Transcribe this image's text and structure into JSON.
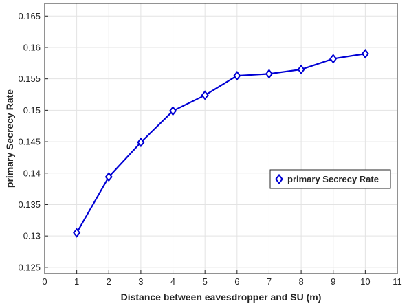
{
  "chart_data": {
    "type": "line",
    "xlabel": "Distance between eavesdropper and SU (m)",
    "ylabel": "primary Secrecy Rate",
    "xlim": [
      0,
      11
    ],
    "ylim": [
      0.124,
      0.167
    ],
    "xticks": [
      0,
      1,
      2,
      3,
      4,
      5,
      6,
      7,
      8,
      9,
      10,
      11
    ],
    "yticks": [
      0.125,
      0.13,
      0.135,
      0.14,
      0.145,
      0.15,
      0.155,
      0.16,
      0.165
    ],
    "ytick_labels": [
      "0.125",
      "0.13",
      "0.135",
      "0.14",
      "0.145",
      "0.15",
      "0.155",
      "0.16",
      "0.165"
    ],
    "grid": true,
    "legend_position": "center-right",
    "series": [
      {
        "name": "primary Secrecy Rate",
        "color": "#0000d4",
        "marker": "diamond",
        "x": [
          1,
          2,
          3,
          4,
          5,
          6,
          7,
          8,
          9,
          10
        ],
        "y": [
          0.1305,
          0.1394,
          0.1449,
          0.1499,
          0.1524,
          0.1555,
          0.1558,
          0.1565,
          0.1582,
          0.159
        ]
      }
    ]
  }
}
